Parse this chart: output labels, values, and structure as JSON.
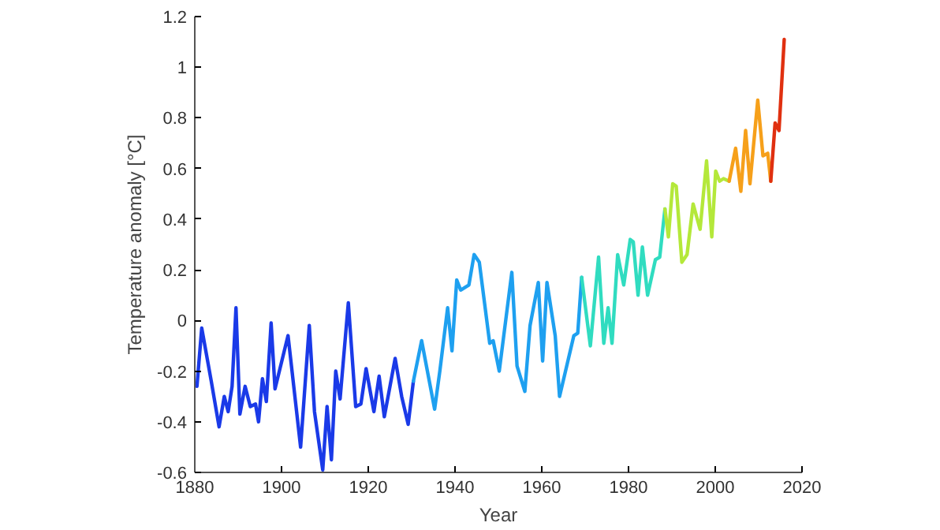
{
  "chart_data": {
    "type": "line",
    "xlabel": "Year",
    "ylabel": "Temperature anomaly [°C]",
    "xlim": [
      1880,
      2020
    ],
    "xticks": [
      1880,
      1900,
      1920,
      1940,
      1960,
      1980,
      2000,
      2020
    ],
    "ylim": [
      -0.6,
      1.2
    ],
    "yticks": [
      -0.6,
      -0.4,
      -0.2,
      0,
      0.2,
      0.4,
      0.6,
      0.8,
      1,
      1.2
    ],
    "grid": false,
    "line_style": "solid",
    "series": [
      {
        "color": "#1a3ae8",
        "x": [
          1880.5,
          1881.6,
          1883.8,
          1885.6,
          1886.8,
          1887.7,
          1888.6,
          1889.5,
          1890.4,
          1891.6,
          1892.8,
          1894,
          1894.7,
          1895.6,
          1896.5,
          1897.6,
          1898.5,
          1899.5,
          1901.5,
          1904.4,
          1906.4,
          1907.6,
          1909.5,
          1910.5,
          1911.5,
          1912.5,
          1913.5,
          1915.4,
          1917.1,
          1918.3,
          1919.5,
          1921.3,
          1922.5,
          1923.7,
          1926.2,
          1927.7,
          1929.2,
          1930.4
        ],
        "values": [
          -0.26,
          -0.03,
          -0.24,
          -0.42,
          -0.3,
          -0.36,
          -0.26,
          0.05,
          -0.37,
          -0.26,
          -0.34,
          -0.33,
          -0.4,
          -0.23,
          -0.32,
          -0.01,
          -0.27,
          -0.2,
          -0.06,
          -0.5,
          -0.02,
          -0.36,
          -0.59,
          -0.34,
          -0.55,
          -0.2,
          -0.31,
          0.07,
          -0.34,
          -0.33,
          -0.19,
          -0.36,
          -0.22,
          -0.38,
          -0.15,
          -0.3,
          -0.41,
          -0.24
        ]
      },
      {
        "color": "#1ea0f0",
        "x": [
          1930.4,
          1932.3,
          1935.3,
          1936.5,
          1938.3,
          1939.3,
          1940.4,
          1941.3,
          1943.2,
          1944.4,
          1945.6,
          1948,
          1948.8,
          1950.2,
          1953.1,
          1954.3,
          1956.1,
          1957.3,
          1959.2,
          1960.2,
          1961.2,
          1963.1,
          1964.1,
          1967.4,
          1968.3,
          1969.2
        ],
        "values": [
          -0.24,
          -0.08,
          -0.35,
          -0.2,
          0.05,
          -0.12,
          0.16,
          0.12,
          0.14,
          0.26,
          0.23,
          -0.09,
          -0.08,
          -0.2,
          0.19,
          -0.18,
          -0.28,
          -0.02,
          0.15,
          -0.16,
          0.15,
          -0.06,
          -0.3,
          -0.06,
          -0.05,
          0.17
        ]
      },
      {
        "color": "#30dcc0",
        "x": [
          1969.2,
          1971.2,
          1973.1,
          1974.3,
          1975.3,
          1976.2,
          1977.5,
          1978.9,
          1980.4,
          1981.1,
          1982.2,
          1983.2,
          1984.4,
          1986.2,
          1987.2,
          1988.4
        ],
        "values": [
          0.17,
          -0.1,
          0.25,
          -0.09,
          0.05,
          -0.09,
          0.26,
          0.14,
          0.32,
          0.31,
          0.1,
          0.29,
          0.1,
          0.24,
          0.25,
          0.44
        ]
      },
      {
        "color": "#b4e83a",
        "x": [
          1988.4,
          1989.2,
          1990.2,
          1991,
          1992.3,
          1993.5,
          1994.9,
          1996.5,
          1998,
          1999.2,
          2000.1,
          2001,
          2001.9,
          2003.2
        ],
        "values": [
          0.44,
          0.33,
          0.54,
          0.53,
          0.23,
          0.26,
          0.46,
          0.36,
          0.63,
          0.33,
          0.59,
          0.55,
          0.56,
          0.55
        ]
      },
      {
        "color": "#f6a01a",
        "x": [
          2003.2,
          2004.7,
          2005.9,
          2007,
          2008,
          2009.8,
          2011,
          2012.1,
          2012.8
        ],
        "values": [
          0.55,
          0.68,
          0.51,
          0.75,
          0.54,
          0.87,
          0.65,
          0.66,
          0.55
        ]
      },
      {
        "color": "#e03010",
        "x": [
          2012.8,
          2013.8,
          2014.7,
          2015.9
        ],
        "values": [
          0.55,
          0.78,
          0.75,
          1.11
        ]
      }
    ]
  }
}
